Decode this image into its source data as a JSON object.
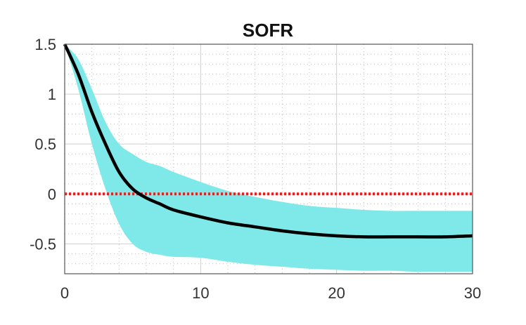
{
  "chart_data": {
    "type": "area",
    "title": "SOFR",
    "xlabel": "",
    "ylabel": "",
    "xlim": [
      0,
      30
    ],
    "ylim": [
      -0.8,
      1.5
    ],
    "x_ticks": [
      "0",
      "10",
      "20",
      "30"
    ],
    "y_ticks": [
      "1.5",
      "1",
      "0.5",
      "0",
      "-0.5"
    ],
    "grid": true,
    "minor_grid": true,
    "colors": {
      "line": "#000000",
      "band": "#7fe8e8",
      "zero_line": "#e61e1e",
      "grid": "#cfcfcf",
      "axes": "#555555"
    },
    "x": [
      0,
      1,
      2,
      3,
      4,
      5,
      6,
      7,
      8,
      10,
      12,
      14,
      16,
      18,
      20,
      22,
      24,
      26,
      28,
      30
    ],
    "median": [
      1.5,
      1.2,
      0.82,
      0.5,
      0.22,
      0.05,
      -0.04,
      -0.1,
      -0.16,
      -0.23,
      -0.29,
      -0.33,
      -0.37,
      -0.4,
      -0.42,
      -0.43,
      -0.43,
      -0.43,
      -0.43,
      -0.42
    ],
    "upper": [
      1.5,
      1.35,
      1.05,
      0.72,
      0.5,
      0.4,
      0.32,
      0.28,
      0.22,
      0.12,
      0.03,
      -0.03,
      -0.08,
      -0.12,
      -0.14,
      -0.16,
      -0.17,
      -0.17,
      -0.17,
      -0.17
    ],
    "lower": [
      1.5,
      1.05,
      0.5,
      0.05,
      -0.3,
      -0.5,
      -0.58,
      -0.61,
      -0.63,
      -0.64,
      -0.68,
      -0.71,
      -0.73,
      -0.75,
      -0.76,
      -0.77,
      -0.77,
      -0.78,
      -0.78,
      -0.78
    ],
    "zero_line": 0
  }
}
